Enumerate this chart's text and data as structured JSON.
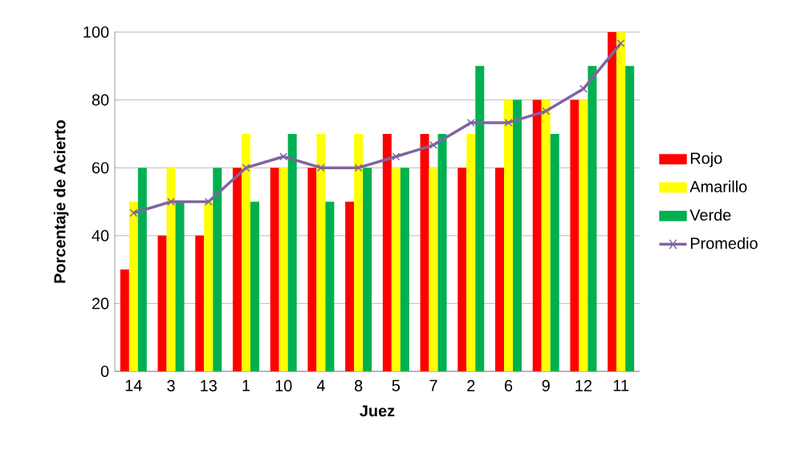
{
  "chart_data": {
    "type": "bar",
    "xlabel": "Juez",
    "ylabel": "Porcentaje de Acierto",
    "categories": [
      "14",
      "3",
      "13",
      "1",
      "10",
      "4",
      "8",
      "5",
      "7",
      "2",
      "6",
      "9",
      "12",
      "11"
    ],
    "series": [
      {
        "name": "Rojo",
        "color": "#ff0000",
        "values": [
          30,
          40,
          40,
          60,
          60,
          60,
          50,
          70,
          70,
          60,
          60,
          80,
          80,
          100
        ]
      },
      {
        "name": "Amarillo",
        "color": "#ffff00",
        "values": [
          50,
          60,
          50,
          70,
          60,
          70,
          70,
          60,
          60,
          70,
          80,
          80,
          80,
          100
        ]
      },
      {
        "name": "Verde",
        "color": "#00b050",
        "values": [
          60,
          50,
          60,
          50,
          70,
          50,
          60,
          60,
          70,
          90,
          80,
          70,
          90,
          90
        ]
      },
      {
        "name": "Promedio",
        "type": "line",
        "color": "#8064a2",
        "marker": "cross",
        "values": [
          46.7,
          50,
          50,
          60,
          63.3,
          60,
          60,
          63.3,
          66.7,
          73.3,
          73.3,
          76.7,
          83.3,
          96.7
        ]
      }
    ],
    "ylim": [
      0,
      100
    ],
    "yticks": [
      0,
      20,
      40,
      60,
      80,
      100
    ],
    "grid": "y",
    "legend": "right"
  }
}
